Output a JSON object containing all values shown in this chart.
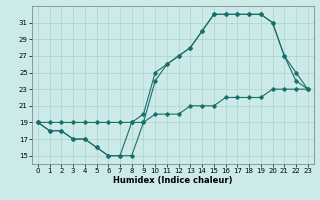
{
  "xlabel": "Humidex (Indice chaleur)",
  "bg_color": "#cceae7",
  "grid_color": "#aad4d0",
  "line_color": "#1a6e6a",
  "x_ticks": [
    0,
    1,
    2,
    3,
    4,
    5,
    6,
    7,
    8,
    9,
    10,
    11,
    12,
    13,
    14,
    15,
    16,
    17,
    18,
    19,
    20,
    21,
    22,
    23
  ],
  "y_ticks": [
    15,
    17,
    19,
    21,
    23,
    25,
    27,
    29,
    31
  ],
  "xlim": [
    -0.5,
    23.5
  ],
  "ylim": [
    14.0,
    33.0
  ],
  "series1_x": [
    0,
    1,
    2,
    3,
    4,
    5,
    6,
    7,
    8,
    9,
    10,
    11,
    12,
    13,
    14,
    15,
    16,
    17,
    18,
    19,
    20,
    21,
    22,
    23
  ],
  "series1_y": [
    19,
    18,
    18,
    17,
    17,
    16,
    15,
    15,
    19,
    20,
    25,
    26,
    27,
    28,
    30,
    32,
    32,
    32,
    32,
    32,
    31,
    27,
    25,
    23
  ],
  "series2_x": [
    0,
    1,
    2,
    3,
    4,
    5,
    6,
    7,
    8,
    9,
    10,
    11,
    12,
    13,
    14,
    15,
    16,
    17,
    18,
    19,
    20,
    21,
    22,
    23
  ],
  "series2_y": [
    19,
    18,
    18,
    17,
    17,
    16,
    15,
    15,
    15,
    19,
    24,
    26,
    27,
    28,
    30,
    32,
    32,
    32,
    32,
    32,
    31,
    27,
    24,
    23
  ],
  "series3_x": [
    0,
    1,
    2,
    3,
    4,
    5,
    6,
    7,
    8,
    9,
    10,
    11,
    12,
    13,
    14,
    15,
    16,
    17,
    18,
    19,
    20,
    21,
    22,
    23
  ],
  "series3_y": [
    19,
    19,
    19,
    19,
    19,
    19,
    19,
    19,
    19,
    19,
    20,
    20,
    20,
    21,
    21,
    21,
    22,
    22,
    22,
    22,
    23,
    23,
    23,
    23
  ],
  "marker_size": 1.8,
  "line_width": 0.8,
  "tick_fontsize": 5.0,
  "xlabel_fontsize": 6.0
}
